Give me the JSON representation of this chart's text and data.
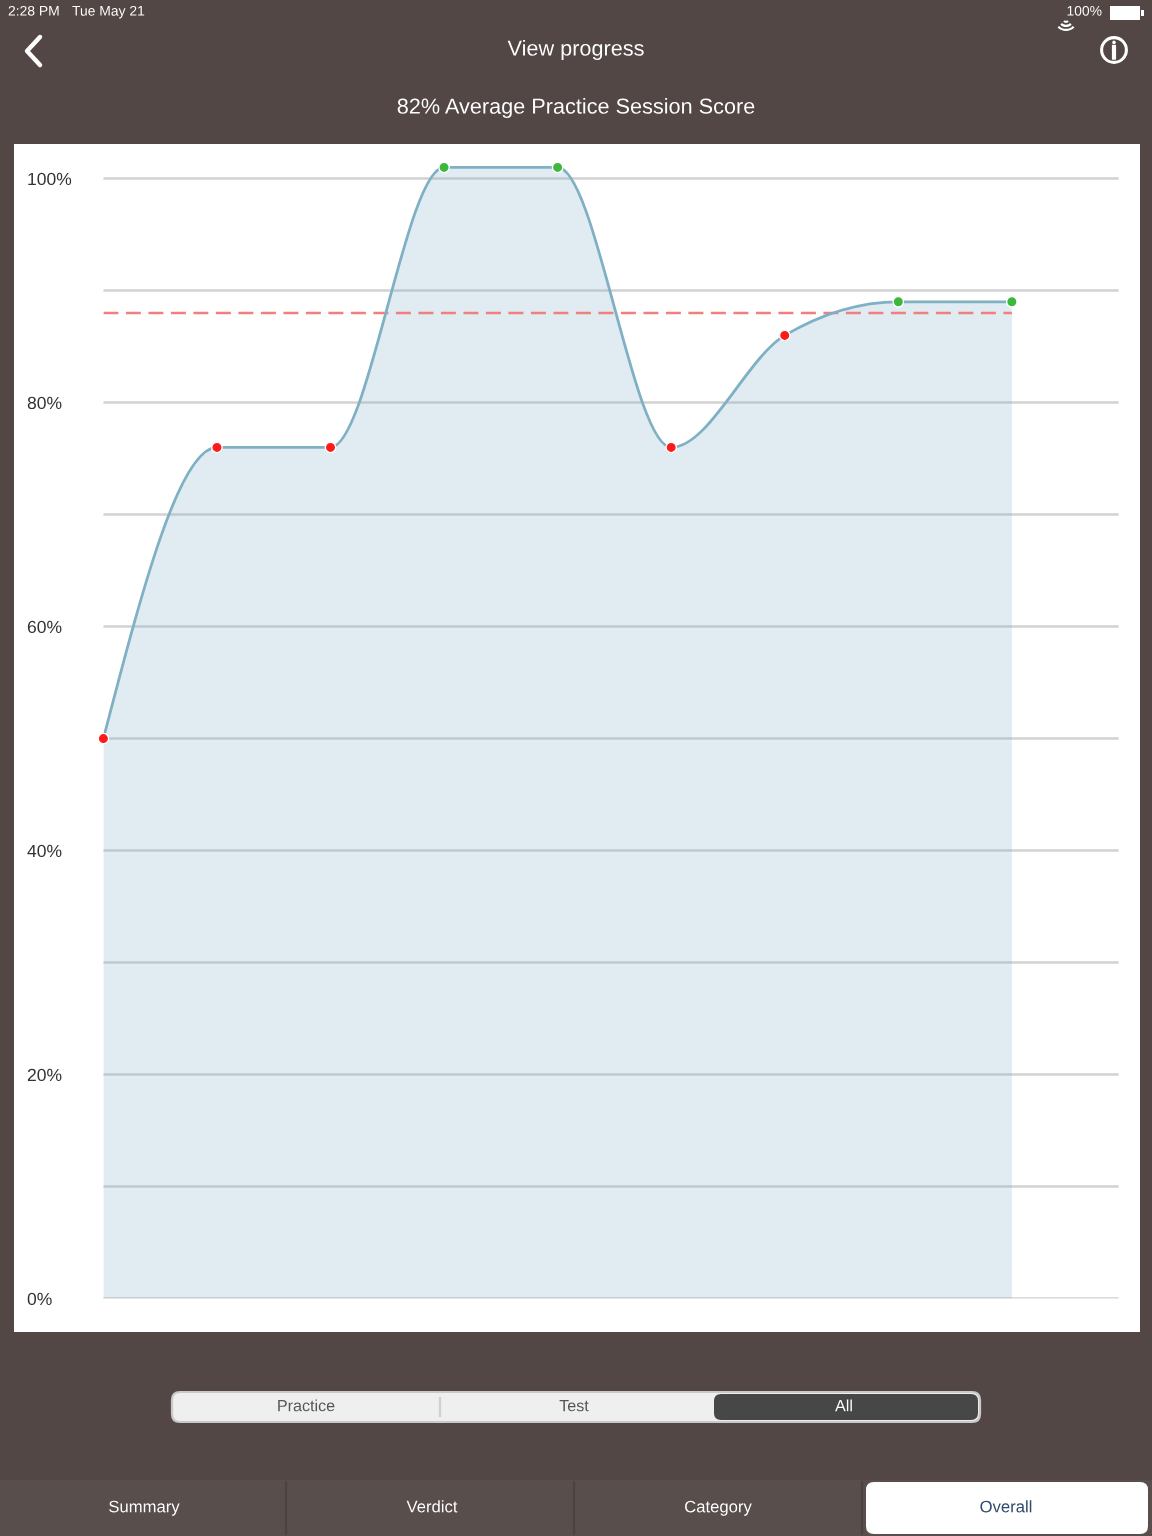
{
  "chart_data": {
    "type": "area",
    "title": "View progress",
    "subtitle": "82% Average Practice Session Score",
    "annotations": [
      "2:28 PM",
      "Tue May 21",
      "100%",
      "Practice",
      "Test",
      "All",
      "Summary",
      "Verdict",
      "Category",
      "Overall"
    ],
    "categories": [
      null,
      null,
      null,
      null,
      null,
      null,
      null,
      null,
      null
    ],
    "series": [
      {
        "color": "#7fb0c4",
        "colors": [
          "#ff1a1a",
          "#ff1a1a",
          "#ff1a1a",
          "#3db83d",
          "#3db83d",
          "#ff1a1a",
          "#ff1a1a",
          "#3db83d",
          "#3db83d"
        ],
        "values": [
          50,
          76,
          76,
          101,
          101,
          76,
          86,
          89,
          89
        ]
      }
    ],
    "ylim": [
      0,
      103
    ],
    "yticks": [
      {
        "value": 0,
        "label": "0%"
      },
      {
        "value": 10,
        "label": null
      },
      {
        "value": 20,
        "label": "20%"
      },
      {
        "value": 30,
        "label": null
      },
      {
        "value": 40,
        "label": "40%"
      },
      {
        "value": 50,
        "label": null
      },
      {
        "value": 60,
        "label": "60%"
      },
      {
        "value": 70,
        "label": null
      },
      {
        "value": 80,
        "label": "80%"
      },
      {
        "value": 90,
        "label": null
      },
      {
        "value": 100,
        "label": "100%"
      }
    ],
    "grid": "y",
    "tick_labels": "y",
    "marker": "circle",
    "ref_lines": [
      {
        "axis": "y",
        "value": 88,
        "color": "#f08080",
        "line_style": "dashed"
      }
    ]
  }
}
